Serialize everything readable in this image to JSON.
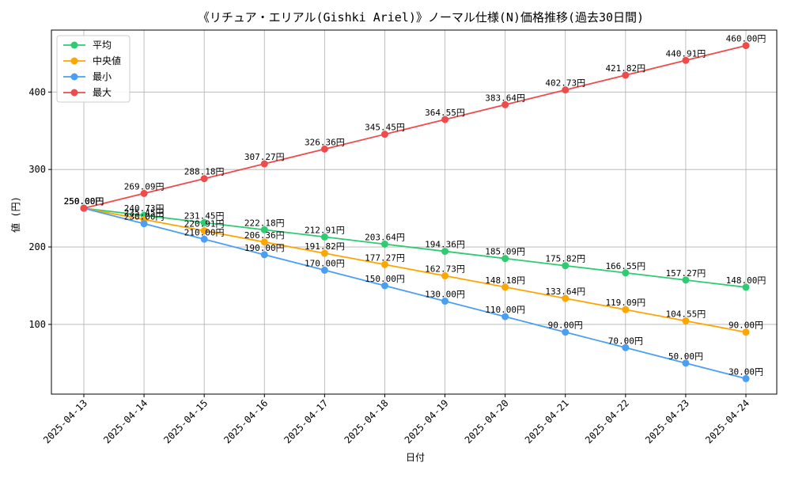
{
  "chart_data": {
    "type": "line",
    "title": "《リチュア・エリアル(Gishki Ariel)》ノーマル仕様(N)価格推移(過去30日間)",
    "xlabel": "日付",
    "ylabel": "値 (円)",
    "categories": [
      "2025-04-13",
      "2025-04-14",
      "2025-04-15",
      "2025-04-16",
      "2025-04-17",
      "2025-04-18",
      "2025-04-19",
      "2025-04-20",
      "2025-04-21",
      "2025-04-22",
      "2025-04-23",
      "2025-04-24"
    ],
    "ylim": [
      10,
      480
    ],
    "yticks": [
      100,
      200,
      300,
      400
    ],
    "grid": true,
    "legend_position": "top-left",
    "unit_suffix": "円",
    "series": [
      {
        "name": "平均",
        "color": "#2ecc71",
        "values": [
          250.0,
          240.73,
          231.45,
          222.18,
          212.91,
          203.64,
          194.36,
          185.09,
          175.82,
          166.55,
          157.27,
          148.0
        ]
      },
      {
        "name": "中央値",
        "color": "#ffa500",
        "values": [
          250.0,
          235.45,
          220.91,
          206.36,
          191.82,
          177.27,
          162.73,
          148.18,
          133.64,
          119.09,
          104.55,
          90.0
        ]
      },
      {
        "name": "最小",
        "color": "#4a9ff5",
        "values": [
          250.0,
          230.0,
          210.0,
          190.0,
          170.0,
          150.0,
          130.0,
          110.0,
          90.0,
          70.0,
          50.0,
          30.0
        ]
      },
      {
        "name": "最大",
        "color": "#f04b4b",
        "values": [
          250.0,
          269.09,
          288.18,
          307.27,
          326.36,
          345.45,
          364.55,
          383.64,
          402.73,
          421.82,
          440.91,
          460.0
        ]
      }
    ]
  }
}
